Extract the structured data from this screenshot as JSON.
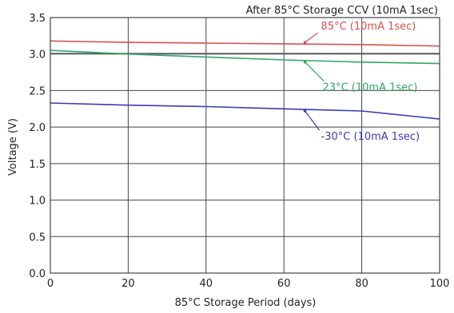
{
  "chart_data": {
    "type": "line",
    "title": "After 85°C Storage  CCV (10mA 1sec)",
    "xlabel": "85°C Storage Period (days)",
    "ylabel": "Voltage (V)",
    "xlim": [
      0,
      100
    ],
    "ylim": [
      0.0,
      3.5
    ],
    "x_ticks": [
      "0",
      "20",
      "40",
      "60",
      "80",
      "100"
    ],
    "y_ticks": [
      "0.0",
      "0.5",
      "1.0",
      "1.5",
      "2.0",
      "2.5",
      "3.0",
      "3.5"
    ],
    "grid": true,
    "series": [
      {
        "name": "85°C (10mA 1sec)",
        "color": "#d94f4f",
        "points": [
          [
            0,
            3.18
          ],
          [
            20,
            3.16
          ],
          [
            40,
            3.15
          ],
          [
            60,
            3.14
          ],
          [
            80,
            3.13
          ],
          [
            100,
            3.11
          ]
        ],
        "annotation_at": 65
      },
      {
        "name": "23°C (10mA 1sec)",
        "color": "#2ea866",
        "points": [
          [
            0,
            3.05
          ],
          [
            20,
            3.0
          ],
          [
            40,
            2.96
          ],
          [
            60,
            2.92
          ],
          [
            80,
            2.89
          ],
          [
            100,
            2.87
          ]
        ],
        "annotation_at": 65
      },
      {
        "name": "-30°C (10mA 1sec)",
        "color": "#3a3ab5",
        "points": [
          [
            0,
            2.33
          ],
          [
            20,
            2.3
          ],
          [
            40,
            2.28
          ],
          [
            60,
            2.25
          ],
          [
            80,
            2.22
          ],
          [
            100,
            2.11
          ]
        ],
        "annotation_at": 65
      }
    ],
    "reference_line": {
      "y": 3.01,
      "color": "#555555"
    }
  }
}
